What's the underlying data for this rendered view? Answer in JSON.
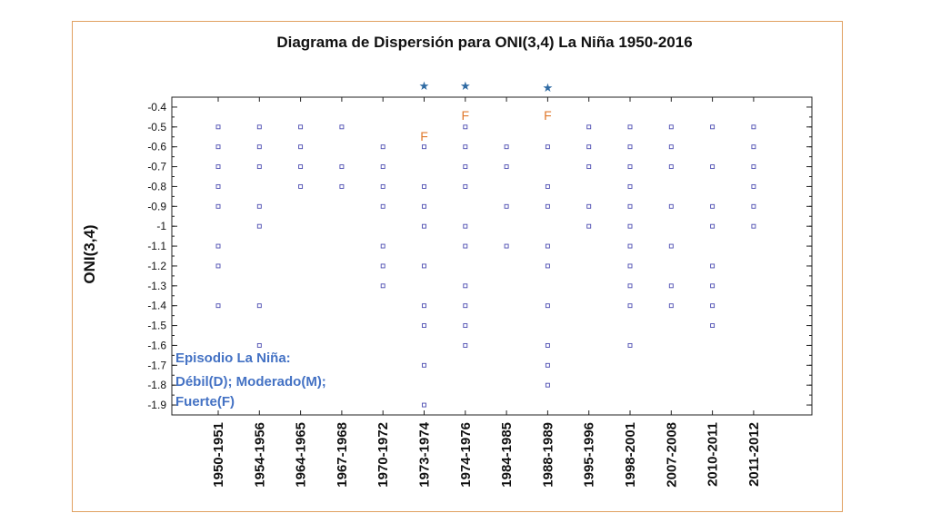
{
  "chart_data": {
    "type": "scatter",
    "title": "Diagrama de Dispersión para ONI(3,4) La Niña 1950-2016",
    "ylabel": "ONI(3,4)",
    "xlabel": "",
    "ylim": [
      -1.95,
      -0.35
    ],
    "y_ticks": [
      "-0.4",
      "-0.5",
      "-0.6",
      "-0.7",
      "-0.8",
      "-0.9",
      "-1",
      "-1.1",
      "-1.2",
      "-1.3",
      "-1.4",
      "-1.5",
      "-1.6",
      "-1.7",
      "-1.8",
      "-1.9"
    ],
    "categories": [
      "1950-1951",
      "1954-1956",
      "1964-1965",
      "1967-1968",
      "1970-1972",
      "1973-1974",
      "1974-1976",
      "1984-1985",
      "1988-1989",
      "1995-1996",
      "1998-2001",
      "2007-2008",
      "2010-2011",
      "2011-2012"
    ],
    "series": [
      {
        "values": [
          [
            -0.5,
            -0.6,
            -0.7,
            -0.8,
            -0.9,
            -1.1,
            -1.2,
            -1.4
          ],
          [
            -0.5,
            -0.6,
            -0.7,
            -0.9,
            -1.0,
            -1.4,
            -1.6
          ],
          [
            -0.5,
            -0.6,
            -0.7,
            -0.8
          ],
          [
            -0.5,
            -0.7,
            -0.8
          ],
          [
            -0.6,
            -0.7,
            -0.8,
            -0.9,
            -1.1,
            -1.2,
            -1.3
          ],
          [
            -0.6,
            -0.8,
            -0.9,
            -1.0,
            -1.2,
            -1.4,
            -1.5,
            -1.7,
            -1.9
          ],
          [
            -0.5,
            -0.6,
            -0.7,
            -0.8,
            -1.0,
            -1.1,
            -1.3,
            -1.4,
            -1.5,
            -1.6
          ],
          [
            -0.6,
            -0.7,
            -0.9,
            -1.1
          ],
          [
            -0.6,
            -0.8,
            -0.9,
            -1.1,
            -1.2,
            -1.4,
            -1.6,
            -1.7,
            -1.8
          ],
          [
            -0.5,
            -0.6,
            -0.7,
            -0.9,
            -1.0
          ],
          [
            -0.5,
            -0.6,
            -0.7,
            -0.8,
            -0.9,
            -1.0,
            -1.1,
            -1.2,
            -1.3,
            -1.4,
            -1.6
          ],
          [
            -0.5,
            -0.6,
            -0.7,
            -0.9,
            -1.1,
            -1.3,
            -1.4
          ],
          [
            -0.5,
            -0.7,
            -0.9,
            -1.0,
            -1.2,
            -1.3,
            -1.4,
            -1.5
          ],
          [
            -0.5,
            -0.6,
            -0.7,
            -0.8,
            -0.9,
            -1.0
          ]
        ]
      }
    ],
    "strong_labels": [
      {
        "category": "1973-1974",
        "text": "F"
      },
      {
        "category": "1974-1976",
        "text": "F"
      },
      {
        "category": "1988-1989",
        "text": "F"
      }
    ],
    "stars": [
      {
        "category": "1973-1974",
        "text": "★"
      },
      {
        "category": "1974-1976",
        "text": "★"
      },
      {
        "category": "1988-1989",
        "text": "★"
      }
    ],
    "annotation": [
      "Episodio La Niña:",
      "Débil(D); Moderado(M);",
      "Fuerte(F)"
    ],
    "grid": false,
    "colors": {
      "points": "#4a4ab0",
      "strong": "#e07a2e",
      "star": "#2e6aa3",
      "annotation": "#4472c4",
      "frame": "#e0a060"
    }
  }
}
